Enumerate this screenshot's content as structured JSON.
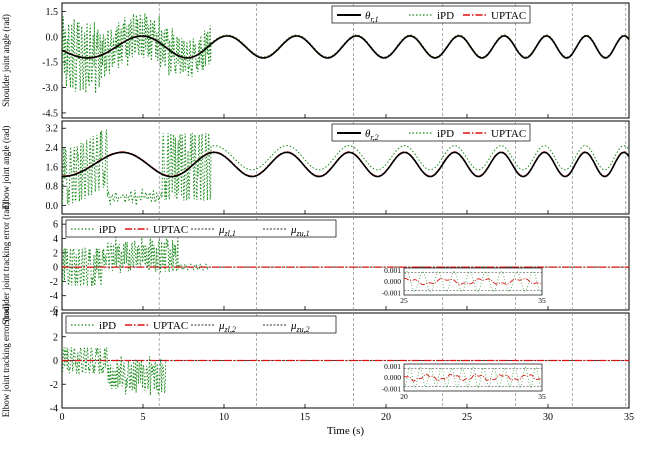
{
  "colors": {
    "reference": "#000000",
    "ipd": "#1a8a1a",
    "uptac": "#dd1111",
    "bound": "#333333",
    "vline": "#888888"
  },
  "chart_data": [
    {
      "id": "shoulder-angle",
      "type": "line",
      "ylabel": "Shoulder joint angle (rad)",
      "xlim": [
        0,
        35
      ],
      "ylim": [
        -4.8,
        2.0
      ],
      "yticks": [
        "1.5",
        "0.0",
        "-1.5",
        "-3.0",
        "-4.5"
      ],
      "ytick_values": [
        1.5,
        0.0,
        -1.5,
        -3.0,
        -4.5
      ],
      "legend": {
        "items": [
          {
            "key": "reference",
            "label": "θr,1",
            "base": "θ",
            "sub": "r,1"
          },
          {
            "key": "ipd",
            "label": "iPD"
          },
          {
            "key": "uptac",
            "label": "UPTAC"
          }
        ]
      },
      "series": [
        {
          "name": "θr,1",
          "key": "reference",
          "signal": "shoulder_ref"
        },
        {
          "name": "iPD",
          "key": "ipd",
          "signal": "shoulder_ipd"
        },
        {
          "name": "UPTAC",
          "key": "uptac",
          "signal": "shoulder_uptac"
        }
      ]
    },
    {
      "id": "elbow-angle",
      "type": "line",
      "ylabel": "Elbow joint angle (rad)",
      "xlim": [
        0,
        35
      ],
      "ylim": [
        -0.35,
        3.5
      ],
      "yticks": [
        "3.2",
        "2.4",
        "1.6",
        "0.8",
        "0.0"
      ],
      "ytick_values": [
        3.2,
        2.4,
        1.6,
        0.8,
        0.0
      ],
      "legend": {
        "items": [
          {
            "key": "reference",
            "label": "θr,2",
            "base": "θ",
            "sub": "r,2"
          },
          {
            "key": "ipd",
            "label": "iPD"
          },
          {
            "key": "uptac",
            "label": "UPTAC"
          }
        ]
      },
      "series": [
        {
          "name": "θr,2",
          "key": "reference",
          "signal": "elbow_ref"
        },
        {
          "name": "iPD",
          "key": "ipd",
          "signal": "elbow_ipd"
        },
        {
          "name": "UPTAC",
          "key": "uptac",
          "signal": "elbow_uptac"
        }
      ]
    },
    {
      "id": "shoulder-error",
      "type": "line",
      "ylabel": "Shoulder joint tracking error (rad)",
      "xlim": [
        0,
        35
      ],
      "ylim": [
        -6,
        7
      ],
      "yticks": [
        "6",
        "4",
        "2",
        "0",
        "-2",
        "-4",
        "-6"
      ],
      "ytick_values": [
        6,
        4,
        2,
        0,
        -2,
        -4,
        -6
      ],
      "legend": {
        "items": [
          {
            "key": "ipd",
            "label": "iPD"
          },
          {
            "key": "uptac",
            "label": "UPTAC"
          },
          {
            "key": "bound",
            "label": "μzl,1",
            "base": "μ",
            "sub": "zl,1"
          },
          {
            "key": "bound",
            "label": "μzu,1",
            "base": "μ",
            "sub": "zu,1"
          }
        ]
      },
      "series": [
        {
          "name": "iPD",
          "key": "ipd",
          "signal": "shoulder_err_ipd"
        },
        {
          "name": "UPTAC",
          "key": "uptac",
          "value": 0
        },
        {
          "name": "μzl,1",
          "key": "bound",
          "value": -0.0008
        },
        {
          "name": "μzu,1",
          "key": "bound",
          "value": 0.0008
        }
      ],
      "inset": {
        "xlim": [
          25,
          35
        ],
        "ylim": [
          -0.0012,
          0.0012
        ],
        "xticks": [
          "25",
          "35"
        ],
        "xtick_values": [
          25,
          35
        ],
        "yticks": [
          "0.001",
          "0.000",
          "-0.001"
        ],
        "ytick_values": [
          0.001,
          0.0,
          -0.001
        ]
      }
    },
    {
      "id": "elbow-error",
      "type": "line",
      "ylabel": "Elbow joint tracking error (rad)",
      "xlim": [
        0,
        35
      ],
      "ylim": [
        -4,
        4
      ],
      "yticks": [
        "4",
        "2",
        "0",
        "-2",
        "-4"
      ],
      "ytick_values": [
        4,
        2,
        0,
        -2,
        -4
      ],
      "xlabel": "Time (s)",
      "xticks": [
        "0",
        "5",
        "10",
        "15",
        "20",
        "25",
        "30",
        "35"
      ],
      "xtick_values": [
        0,
        5,
        10,
        15,
        20,
        25,
        30,
        35
      ],
      "legend": {
        "items": [
          {
            "key": "ipd",
            "label": "iPD"
          },
          {
            "key": "uptac",
            "label": "UPTAC"
          },
          {
            "key": "bound",
            "label": "μzl,2",
            "base": "μ",
            "sub": "zl,2"
          },
          {
            "key": "bound",
            "label": "μzu,2",
            "base": "μ",
            "sub": "zu,2"
          }
        ]
      },
      "series": [
        {
          "name": "iPD",
          "key": "ipd",
          "signal": "elbow_err_ipd"
        },
        {
          "name": "UPTAC",
          "key": "uptac",
          "value": 0
        },
        {
          "name": "μzl,2",
          "key": "bound",
          "value": -0.0008
        },
        {
          "name": "μzu,2",
          "key": "bound",
          "value": 0.0008
        }
      ],
      "inset": {
        "xlim": [
          20,
          35
        ],
        "ylim": [
          -0.0012,
          0.0012
        ],
        "xticks": [
          "20",
          "35"
        ],
        "xtick_values": [
          20,
          35
        ],
        "yticks": [
          "0.001",
          "0.000",
          "-0.001"
        ],
        "ytick_values": [
          0.001,
          0.0,
          -0.001
        ]
      }
    }
  ],
  "event_times": [
    6,
    12,
    18,
    23.5,
    28,
    31.5,
    34.8
  ]
}
